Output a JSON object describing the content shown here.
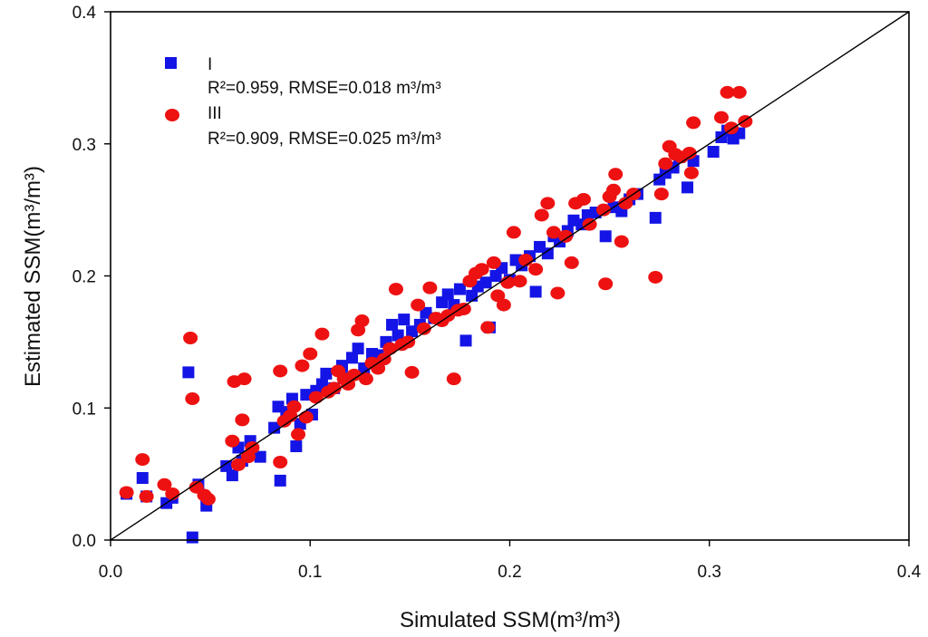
{
  "chart_data": {
    "type": "scatter",
    "xlabel": "Simulated SSM(m³/m³)",
    "ylabel": "Estimated SSM(m³/m³)",
    "xlim": [
      0.0,
      0.4
    ],
    "ylim": [
      0.0,
      0.4
    ],
    "x_ticks": [
      "0.0",
      "0.1",
      "0.2",
      "0.3",
      "0.4"
    ],
    "y_ticks": [
      "0.0",
      "0.1",
      "0.2",
      "0.3",
      "0.4"
    ],
    "reference_line": "1:1",
    "legend_position": "top-left",
    "series": [
      {
        "name": "I",
        "stats": "R²=0.959, RMSE=0.018 m³/m³",
        "marker": "square",
        "color": "#1414e6",
        "points": [
          [
            0.008,
            0.035
          ],
          [
            0.016,
            0.047
          ],
          [
            0.018,
            0.033
          ],
          [
            0.028,
            0.028
          ],
          [
            0.031,
            0.032
          ],
          [
            0.039,
            0.127
          ],
          [
            0.041,
            0.002
          ],
          [
            0.044,
            0.042
          ],
          [
            0.048,
            0.026
          ],
          [
            0.058,
            0.056
          ],
          [
            0.061,
            0.049
          ],
          [
            0.064,
            0.07
          ],
          [
            0.066,
            0.06
          ],
          [
            0.07,
            0.075
          ],
          [
            0.075,
            0.063
          ],
          [
            0.082,
            0.085
          ],
          [
            0.084,
            0.101
          ],
          [
            0.085,
            0.045
          ],
          [
            0.088,
            0.097
          ],
          [
            0.091,
            0.107
          ],
          [
            0.093,
            0.071
          ],
          [
            0.095,
            0.088
          ],
          [
            0.098,
            0.11
          ],
          [
            0.101,
            0.095
          ],
          [
            0.103,
            0.113
          ],
          [
            0.106,
            0.118
          ],
          [
            0.108,
            0.126
          ],
          [
            0.112,
            0.115
          ],
          [
            0.116,
            0.132
          ],
          [
            0.119,
            0.123
          ],
          [
            0.121,
            0.138
          ],
          [
            0.124,
            0.145
          ],
          [
            0.127,
            0.13
          ],
          [
            0.131,
            0.141
          ],
          [
            0.134,
            0.14
          ],
          [
            0.138,
            0.15
          ],
          [
            0.141,
            0.163
          ],
          [
            0.144,
            0.155
          ],
          [
            0.147,
            0.167
          ],
          [
            0.151,
            0.158
          ],
          [
            0.155,
            0.163
          ],
          [
            0.158,
            0.172
          ],
          [
            0.162,
            0.168
          ],
          [
            0.166,
            0.18
          ],
          [
            0.169,
            0.186
          ],
          [
            0.172,
            0.178
          ],
          [
            0.175,
            0.19
          ],
          [
            0.178,
            0.151
          ],
          [
            0.181,
            0.185
          ],
          [
            0.184,
            0.192
          ],
          [
            0.188,
            0.195
          ],
          [
            0.19,
            0.161
          ],
          [
            0.193,
            0.2
          ],
          [
            0.196,
            0.206
          ],
          [
            0.2,
            0.197
          ],
          [
            0.203,
            0.212
          ],
          [
            0.206,
            0.208
          ],
          [
            0.21,
            0.215
          ],
          [
            0.213,
            0.188
          ],
          [
            0.215,
            0.222
          ],
          [
            0.219,
            0.217
          ],
          [
            0.222,
            0.23
          ],
          [
            0.225,
            0.226
          ],
          [
            0.229,
            0.234
          ],
          [
            0.232,
            0.242
          ],
          [
            0.236,
            0.239
          ],
          [
            0.239,
            0.246
          ],
          [
            0.243,
            0.248
          ],
          [
            0.248,
            0.23
          ],
          [
            0.252,
            0.252
          ],
          [
            0.256,
            0.249
          ],
          [
            0.26,
            0.258
          ],
          [
            0.264,
            0.262
          ],
          [
            0.273,
            0.244
          ],
          [
            0.275,
            0.273
          ],
          [
            0.278,
            0.278
          ],
          [
            0.282,
            0.282
          ],
          [
            0.285,
            0.29
          ],
          [
            0.289,
            0.267
          ],
          [
            0.292,
            0.287
          ],
          [
            0.302,
            0.294
          ],
          [
            0.306,
            0.305
          ],
          [
            0.309,
            0.31
          ],
          [
            0.312,
            0.304
          ],
          [
            0.315,
            0.308
          ]
        ]
      },
      {
        "name": "III",
        "stats": "R²=0.909, RMSE=0.025 m³/m³",
        "marker": "circle",
        "color": "#ee1111",
        "points": [
          [
            0.008,
            0.036
          ],
          [
            0.016,
            0.061
          ],
          [
            0.018,
            0.033
          ],
          [
            0.027,
            0.042
          ],
          [
            0.031,
            0.035
          ],
          [
            0.04,
            0.153
          ],
          [
            0.041,
            0.107
          ],
          [
            0.043,
            0.04
          ],
          [
            0.047,
            0.034
          ],
          [
            0.049,
            0.031
          ],
          [
            0.061,
            0.075
          ],
          [
            0.062,
            0.12
          ],
          [
            0.064,
            0.057
          ],
          [
            0.066,
            0.091
          ],
          [
            0.067,
            0.122
          ],
          [
            0.069,
            0.063
          ],
          [
            0.071,
            0.07
          ],
          [
            0.085,
            0.128
          ],
          [
            0.085,
            0.059
          ],
          [
            0.087,
            0.09
          ],
          [
            0.09,
            0.094
          ],
          [
            0.092,
            0.101
          ],
          [
            0.094,
            0.08
          ],
          [
            0.096,
            0.132
          ],
          [
            0.098,
            0.093
          ],
          [
            0.1,
            0.141
          ],
          [
            0.103,
            0.108
          ],
          [
            0.106,
            0.156
          ],
          [
            0.109,
            0.112
          ],
          [
            0.112,
            0.115
          ],
          [
            0.114,
            0.128
          ],
          [
            0.117,
            0.122
          ],
          [
            0.119,
            0.118
          ],
          [
            0.122,
            0.125
          ],
          [
            0.124,
            0.159
          ],
          [
            0.126,
            0.166
          ],
          [
            0.128,
            0.122
          ],
          [
            0.131,
            0.134
          ],
          [
            0.134,
            0.13
          ],
          [
            0.137,
            0.137
          ],
          [
            0.14,
            0.145
          ],
          [
            0.143,
            0.19
          ],
          [
            0.146,
            0.148
          ],
          [
            0.149,
            0.15
          ],
          [
            0.151,
            0.127
          ],
          [
            0.154,
            0.178
          ],
          [
            0.157,
            0.16
          ],
          [
            0.16,
            0.191
          ],
          [
            0.163,
            0.168
          ],
          [
            0.166,
            0.166
          ],
          [
            0.169,
            0.17
          ],
          [
            0.172,
            0.122
          ],
          [
            0.174,
            0.174
          ],
          [
            0.177,
            0.175
          ],
          [
            0.18,
            0.196
          ],
          [
            0.183,
            0.202
          ],
          [
            0.186,
            0.205
          ],
          [
            0.189,
            0.161
          ],
          [
            0.192,
            0.21
          ],
          [
            0.194,
            0.185
          ],
          [
            0.197,
            0.178
          ],
          [
            0.199,
            0.195
          ],
          [
            0.202,
            0.233
          ],
          [
            0.205,
            0.196
          ],
          [
            0.208,
            0.212
          ],
          [
            0.213,
            0.205
          ],
          [
            0.216,
            0.246
          ],
          [
            0.219,
            0.255
          ],
          [
            0.222,
            0.233
          ],
          [
            0.224,
            0.187
          ],
          [
            0.228,
            0.23
          ],
          [
            0.231,
            0.21
          ],
          [
            0.233,
            0.255
          ],
          [
            0.237,
            0.258
          ],
          [
            0.24,
            0.239
          ],
          [
            0.247,
            0.25
          ],
          [
            0.248,
            0.194
          ],
          [
            0.25,
            0.26
          ],
          [
            0.252,
            0.265
          ],
          [
            0.253,
            0.277
          ],
          [
            0.256,
            0.226
          ],
          [
            0.258,
            0.255
          ],
          [
            0.262,
            0.262
          ],
          [
            0.273,
            0.199
          ],
          [
            0.276,
            0.262
          ],
          [
            0.278,
            0.285
          ],
          [
            0.28,
            0.298
          ],
          [
            0.283,
            0.292
          ],
          [
            0.286,
            0.29
          ],
          [
            0.29,
            0.293
          ],
          [
            0.291,
            0.278
          ],
          [
            0.292,
            0.316
          ],
          [
            0.306,
            0.32
          ],
          [
            0.309,
            0.339
          ],
          [
            0.311,
            0.312
          ],
          [
            0.315,
            0.339
          ],
          [
            0.318,
            0.317
          ]
        ]
      }
    ]
  }
}
